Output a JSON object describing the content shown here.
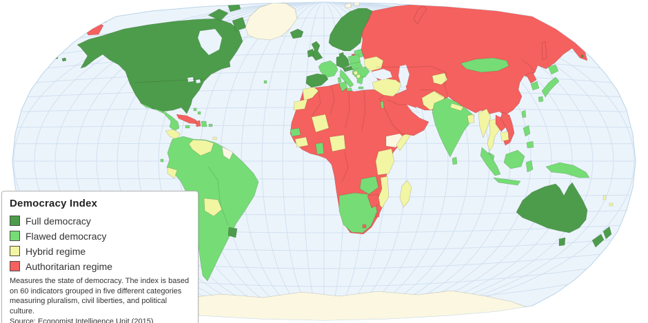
{
  "legend": {
    "title": "Democracy Index",
    "items": [
      {
        "key": "full",
        "label": "Full democracy",
        "color": "#4d9c4b"
      },
      {
        "key": "flawed",
        "label": "Flawed democracy",
        "color": "#76dc76"
      },
      {
        "key": "hybrid",
        "label": "Hybrid regime",
        "color": "#f2f5a2"
      },
      {
        "key": "authoritarian",
        "label": "Authoritarian regime",
        "color": "#f4615e"
      }
    ],
    "description": "Measures the state of democracy. The index is based\non 60 indicators grouped in five different categories\nmeasuring pluralism, civil liberties, and political culture.\nSource: Economist Intelligence Unit (2015)"
  },
  "map": {
    "type": "choropleth-world-map",
    "ocean_color": "#ecf4fb",
    "graticule_color": "#cfe0f0",
    "outline_color": "#b9d3e8",
    "nodata_color": "#fbf7e0",
    "regions": [
      {
        "id": "antarctica",
        "name": "Antarctica",
        "category": "nodata"
      },
      {
        "id": "north-america",
        "name": "United States and Canada",
        "category": "full"
      },
      {
        "id": "aleutian-1",
        "name": "Aleutian Islands",
        "category": "full"
      },
      {
        "id": "aleutian-2",
        "name": "Aleutian Islands",
        "category": "full"
      },
      {
        "id": "canadian-arctic-1",
        "name": "Canadian Arctic Islands",
        "category": "full"
      },
      {
        "id": "canadian-arctic-2",
        "name": "Canadian Arctic Islands",
        "category": "full"
      },
      {
        "id": "baffin-island",
        "name": "Baffin Island",
        "category": "full"
      },
      {
        "id": "greenland",
        "name": "Greenland",
        "category": "nodata"
      },
      {
        "id": "svalbard-1",
        "name": "Svalbard",
        "category": "nodata"
      },
      {
        "id": "svalbard-2",
        "name": "Svalbard",
        "category": "nodata"
      },
      {
        "id": "iceland",
        "name": "Iceland",
        "category": "full"
      },
      {
        "id": "azores",
        "name": "Azores",
        "category": "flawed"
      },
      {
        "id": "chukotka-1",
        "name": "Chukotka",
        "category": "authoritarian"
      },
      {
        "id": "chukotka-2",
        "name": "Chukotka",
        "category": "authoritarian"
      },
      {
        "id": "mexico",
        "name": "Mexico",
        "category": "flawed"
      },
      {
        "id": "central-america",
        "name": "Guatemala, Honduras and Nicaragua",
        "category": "hybrid"
      },
      {
        "id": "costa-rica-panama",
        "name": "Costa Rica and Panama",
        "category": "flawed"
      },
      {
        "id": "cuba",
        "name": "Cuba",
        "category": "authoritarian"
      },
      {
        "id": "haiti",
        "name": "Haiti",
        "category": "authoritarian"
      },
      {
        "id": "dominican-republic",
        "name": "Dominican Republic",
        "category": "flawed"
      },
      {
        "id": "jamaica",
        "name": "Jamaica",
        "category": "flawed"
      },
      {
        "id": "puerto-rico",
        "name": "Puerto Rico",
        "category": "flawed"
      },
      {
        "id": "bahamas-1",
        "name": "Bahamas",
        "category": "flawed"
      },
      {
        "id": "bahamas-2",
        "name": "Bahamas",
        "category": "flawed"
      },
      {
        "id": "trinidad",
        "name": "Trinidad and Tobago",
        "category": "hybrid"
      },
      {
        "id": "south-america",
        "name": "South America",
        "category": "flawed"
      },
      {
        "id": "venezuela",
        "name": "Venezuela",
        "category": "hybrid"
      },
      {
        "id": "ecuador",
        "name": "Ecuador",
        "category": "hybrid"
      },
      {
        "id": "bolivia",
        "name": "Bolivia",
        "category": "hybrid"
      },
      {
        "id": "uruguay",
        "name": "Uruguay",
        "category": "full"
      },
      {
        "id": "guianas",
        "name": "Suriname and French Guiana",
        "category": "nodata"
      },
      {
        "id": "galapagos",
        "name": "Galapagos",
        "category": "flawed"
      },
      {
        "id": "africa",
        "name": "North and Central Africa",
        "category": "authoritarian"
      },
      {
        "id": "morocco",
        "name": "Morocco",
        "category": "hybrid"
      },
      {
        "id": "western-sahara",
        "name": "Western Sahara",
        "category": "hybrid"
      },
      {
        "id": "tunisia",
        "name": "Tunisia",
        "category": "flawed"
      },
      {
        "id": "mali",
        "name": "Mali",
        "category": "hybrid"
      },
      {
        "id": "burkina-benin",
        "name": "Burkina Faso and Benin",
        "category": "hybrid"
      },
      {
        "id": "senegal",
        "name": "Senegal",
        "category": "flawed"
      },
      {
        "id": "guinea",
        "name": "Guinea region",
        "category": "hybrid"
      },
      {
        "id": "ghana",
        "name": "Ghana",
        "category": "flawed"
      },
      {
        "id": "ethiopia",
        "name": "Ethiopia",
        "category": "nodata"
      },
      {
        "id": "somalia",
        "name": "Somalia",
        "category": "hybrid"
      },
      {
        "id": "east-africa",
        "name": "Uganda, Kenya and Tanzania",
        "category": "hybrid"
      },
      {
        "id": "zambia",
        "name": "Zambia",
        "category": "flawed"
      },
      {
        "id": "mozambique",
        "name": "Mozambique and Malawi",
        "category": "hybrid"
      },
      {
        "id": "southern-africa",
        "name": "South Africa, Namibia and Botswana",
        "category": "flawed"
      },
      {
        "id": "zimbabwe",
        "name": "Zimbabwe",
        "category": "authoritarian"
      },
      {
        "id": "swaziland",
        "name": "Swaziland",
        "category": "authoritarian"
      },
      {
        "id": "lesotho",
        "name": "Lesotho",
        "category": "authoritarian"
      },
      {
        "id": "madagascar",
        "name": "Madagascar",
        "category": "hybrid"
      },
      {
        "id": "eurasia",
        "name": "Russia, Central Asia, China and Middle East",
        "category": "authoritarian"
      },
      {
        "id": "novaya-zemlya",
        "name": "Novaya Zemlya",
        "category": "authoritarian"
      },
      {
        "id": "sakhalin",
        "name": "Sakhalin",
        "category": "authoritarian"
      },
      {
        "id": "united-kingdom",
        "name": "United Kingdom",
        "category": "full"
      },
      {
        "id": "ireland",
        "name": "Ireland",
        "category": "full"
      },
      {
        "id": "scandinavia",
        "name": "Norway, Sweden and Finland",
        "category": "full"
      },
      {
        "id": "denmark",
        "name": "Denmark",
        "category": "full"
      },
      {
        "id": "baltic-states",
        "name": "Baltic states",
        "category": "flawed"
      },
      {
        "id": "kaliningrad",
        "name": "Kaliningrad",
        "category": "authoritarian"
      },
      {
        "id": "poland",
        "name": "Poland",
        "category": "flawed"
      },
      {
        "id": "germany",
        "name": "Germany and Benelux",
        "category": "full"
      },
      {
        "id": "alpine-region",
        "name": "Switzerland and Austria",
        "category": "full"
      },
      {
        "id": "central-europe",
        "name": "Czechia, Slovakia and Hungary",
        "category": "flawed"
      },
      {
        "id": "france",
        "name": "France",
        "category": "flawed"
      },
      {
        "id": "iberia",
        "name": "Spain and Portugal",
        "category": "full"
      },
      {
        "id": "italy",
        "name": "Italy",
        "category": "flawed"
      },
      {
        "id": "sicily",
        "name": "Sicily",
        "category": "flawed"
      },
      {
        "id": "sardinia",
        "name": "Sardinia",
        "category": "flawed"
      },
      {
        "id": "balkans",
        "name": "Balkans and Romania",
        "category": "flawed"
      },
      {
        "id": "bosnia",
        "name": "Bosnia",
        "category": "hybrid"
      },
      {
        "id": "albania-macedonia",
        "name": "Albania and Macedonia",
        "category": "hybrid"
      },
      {
        "id": "greece",
        "name": "Greece",
        "category": "flawed"
      },
      {
        "id": "crete",
        "name": "Crete",
        "category": "flawed"
      },
      {
        "id": "ukraine",
        "name": "Ukraine and Moldova",
        "category": "hybrid"
      },
      {
        "id": "turkey",
        "name": "Turkey",
        "category": "hybrid"
      },
      {
        "id": "israel",
        "name": "Israel",
        "category": "flawed"
      },
      {
        "id": "mongolia",
        "name": "Mongolia",
        "category": "flawed"
      },
      {
        "id": "kyrgyzstan",
        "name": "Kyrgyzstan",
        "category": "hybrid"
      },
      {
        "id": "pakistan",
        "name": "Pakistan",
        "category": "hybrid"
      },
      {
        "id": "india",
        "name": "India",
        "category": "flawed"
      },
      {
        "id": "nepal",
        "name": "Nepal",
        "category": "hybrid"
      },
      {
        "id": "bangladesh",
        "name": "Bangladesh",
        "category": "hybrid"
      },
      {
        "id": "sri-lanka",
        "name": "Sri Lanka",
        "category": "flawed"
      },
      {
        "id": "myanmar",
        "name": "Myanmar",
        "category": "hybrid"
      },
      {
        "id": "thailand",
        "name": "Thailand",
        "category": "hybrid"
      },
      {
        "id": "laos",
        "name": "Laos",
        "category": "authoritarian"
      },
      {
        "id": "vietnam",
        "name": "Vietnam",
        "category": "authoritarian"
      },
      {
        "id": "cambodia",
        "name": "Cambodia",
        "category": "hybrid"
      },
      {
        "id": "malaysia",
        "name": "Malaysia",
        "category": "flawed"
      },
      {
        "id": "sumatra",
        "name": "Sumatra (Indonesia)",
        "category": "flawed"
      },
      {
        "id": "java",
        "name": "Java (Indonesia)",
        "category": "flawed"
      },
      {
        "id": "borneo",
        "name": "Borneo",
        "category": "flawed"
      },
      {
        "id": "sulawesi",
        "name": "Sulawesi (Indonesia)",
        "category": "flawed"
      },
      {
        "id": "new-guinea",
        "name": "New Guinea",
        "category": "flawed"
      },
      {
        "id": "philippines-luzon",
        "name": "Philippines (Luzon)",
        "category": "flawed"
      },
      {
        "id": "philippines-mindanao",
        "name": "Philippines (Mindanao)",
        "category": "flawed"
      },
      {
        "id": "north-korea",
        "name": "North Korea",
        "category": "authoritarian"
      },
      {
        "id": "south-korea",
        "name": "South Korea",
        "category": "flawed"
      },
      {
        "id": "japan-hokkaido",
        "name": "Japan (Hokkaido)",
        "category": "flawed"
      },
      {
        "id": "japan-honshu",
        "name": "Japan (Honshu)",
        "category": "flawed"
      },
      {
        "id": "japan-kyushu",
        "name": "Japan (Kyushu)",
        "category": "flawed"
      },
      {
        "id": "taiwan",
        "name": "Taiwan",
        "category": "flawed"
      },
      {
        "id": "pacific-island",
        "name": "Pacific island",
        "category": "full"
      },
      {
        "id": "australia",
        "name": "Australia",
        "category": "full"
      },
      {
        "id": "tasmania",
        "name": "Tasmania",
        "category": "full"
      },
      {
        "id": "new-zealand-north",
        "name": "New Zealand (North Island)",
        "category": "full"
      },
      {
        "id": "new-zealand-south",
        "name": "New Zealand (South Island)",
        "category": "full"
      },
      {
        "id": "vanuatu",
        "name": "Vanuatu",
        "category": "hybrid"
      },
      {
        "id": "fiji",
        "name": "Fiji",
        "category": "hybrid"
      },
      {
        "id": "hudson-bay",
        "name": "Hudson Bay",
        "category": "water"
      },
      {
        "id": "great-lakes-1",
        "name": "Great Lakes",
        "category": "water"
      },
      {
        "id": "great-lakes-2",
        "name": "Great Lakes",
        "category": "water"
      },
      {
        "id": "black-sea",
        "name": "Black Sea",
        "category": "water"
      },
      {
        "id": "caspian-sea",
        "name": "Caspian Sea",
        "category": "water"
      },
      {
        "id": "persian-gulf",
        "name": "Persian Gulf",
        "category": "water"
      }
    ]
  }
}
